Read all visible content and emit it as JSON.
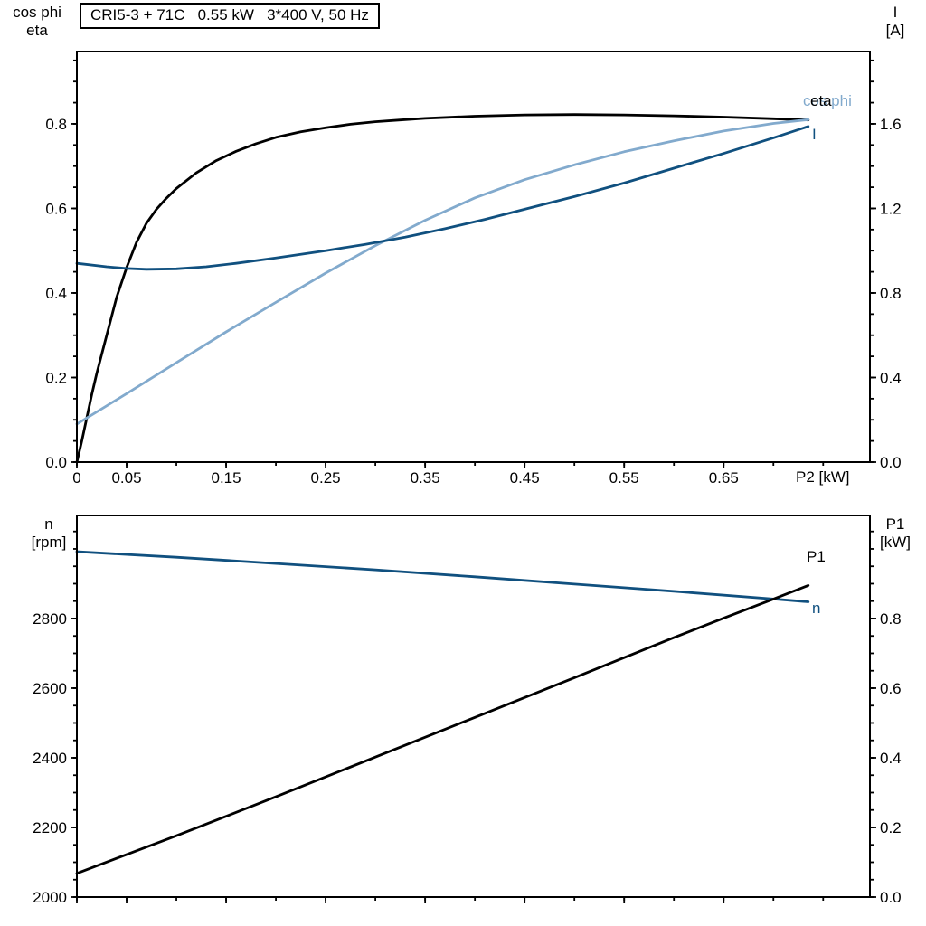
{
  "title_box": {
    "text": "CRI5-3 + 71C   0.55 kW   3*400 V, 50 Hz"
  },
  "colors": {
    "black": "#000000",
    "dark_blue": "#10507f",
    "light_blue": "#82aacd"
  },
  "axis_corner_labels": {
    "top_left_line1": "cos phi",
    "top_left_line2": "eta",
    "top_right_line1": "I",
    "top_right_line2": "[A]",
    "bottom_left_line1": "n",
    "bottom_left_line2": "[rpm]",
    "bottom_right_line1": "P1",
    "bottom_right_line2": "[kW]",
    "x_axis": "P2 [kW]"
  },
  "curve_labels": {
    "eta": "eta",
    "cos_phi": "cos phi",
    "current": "I",
    "p1": "P1",
    "n": "n"
  },
  "chart_data": [
    {
      "type": "line",
      "title": "CRI5-3 + 71C   0.55 kW   3*400 V, 50 Hz",
      "x": {
        "label": "P2 [kW]",
        "range": [
          0,
          0.797
        ],
        "minor_step": 0.05,
        "show_labels": true,
        "major_ticks": [
          0,
          0.05,
          0.15,
          0.25,
          0.35,
          0.45,
          0.55,
          0.65
        ],
        "major_labels": [
          "0",
          "0.05",
          "0.15",
          "0.25",
          "0.35",
          "0.45",
          "0.55",
          "0.65"
        ]
      },
      "y_left": {
        "label": "cos phi / eta",
        "range": [
          0,
          0.971
        ],
        "minor_step": 0.05,
        "major_ticks": [
          0,
          0.2,
          0.4,
          0.6,
          0.8
        ],
        "major_labels": [
          "0.0",
          "0.2",
          "0.4",
          "0.6",
          "0.8"
        ]
      },
      "y_right": {
        "label": "I [A]",
        "range": [
          0,
          1.942
        ],
        "minor_step": 0.1,
        "major_ticks": [
          0,
          0.4,
          0.8,
          1.2,
          1.6
        ],
        "major_labels": [
          "0.0",
          "0.4",
          "0.8",
          "1.2",
          "1.6"
        ]
      },
      "legend_position": "end-of-curve",
      "grid": false,
      "series": [
        {
          "name": "eta",
          "axis": "left",
          "color": "black",
          "points": [
            [
              0,
              0
            ],
            [
              0.005,
              0.05
            ],
            [
              0.01,
              0.105
            ],
            [
              0.015,
              0.16
            ],
            [
              0.02,
              0.21
            ],
            [
              0.03,
              0.3
            ],
            [
              0.04,
              0.39
            ],
            [
              0.05,
              0.46
            ],
            [
              0.06,
              0.52
            ],
            [
              0.07,
              0.565
            ],
            [
              0.08,
              0.598
            ],
            [
              0.09,
              0.624
            ],
            [
              0.1,
              0.647
            ],
            [
              0.12,
              0.684
            ],
            [
              0.14,
              0.713
            ],
            [
              0.16,
              0.735
            ],
            [
              0.18,
              0.753
            ],
            [
              0.2,
              0.768
            ],
            [
              0.225,
              0.781
            ],
            [
              0.25,
              0.791
            ],
            [
              0.275,
              0.799
            ],
            [
              0.3,
              0.805
            ],
            [
              0.325,
              0.809
            ],
            [
              0.35,
              0.813
            ],
            [
              0.4,
              0.818
            ],
            [
              0.45,
              0.821
            ],
            [
              0.5,
              0.822
            ],
            [
              0.55,
              0.821
            ],
            [
              0.6,
              0.819
            ],
            [
              0.65,
              0.816
            ],
            [
              0.7,
              0.812
            ],
            [
              0.735,
              0.809
            ]
          ]
        },
        {
          "name": "cos phi",
          "axis": "left",
          "color": "light_blue",
          "points": [
            [
              0,
              0.09
            ],
            [
              0.05,
              0.162
            ],
            [
              0.1,
              0.235
            ],
            [
              0.15,
              0.308
            ],
            [
              0.2,
              0.378
            ],
            [
              0.25,
              0.447
            ],
            [
              0.3,
              0.512
            ],
            [
              0.35,
              0.572
            ],
            [
              0.4,
              0.625
            ],
            [
              0.45,
              0.668
            ],
            [
              0.5,
              0.703
            ],
            [
              0.55,
              0.734
            ],
            [
              0.6,
              0.76
            ],
            [
              0.65,
              0.783
            ],
            [
              0.7,
              0.801
            ],
            [
              0.735,
              0.81
            ]
          ]
        },
        {
          "name": "I",
          "axis": "right",
          "color": "dark_blue",
          "points": [
            [
              0,
              0.94
            ],
            [
              0.03,
              0.924
            ],
            [
              0.05,
              0.916
            ],
            [
              0.07,
              0.912
            ],
            [
              0.1,
              0.914
            ],
            [
              0.13,
              0.924
            ],
            [
              0.16,
              0.94
            ],
            [
              0.2,
              0.966
            ],
            [
              0.25,
              1.0
            ],
            [
              0.29,
              1.03
            ],
            [
              0.33,
              1.064
            ],
            [
              0.37,
              1.104
            ],
            [
              0.41,
              1.148
            ],
            [
              0.45,
              1.196
            ],
            [
              0.5,
              1.256
            ],
            [
              0.55,
              1.32
            ],
            [
              0.6,
              1.39
            ],
            [
              0.65,
              1.46
            ],
            [
              0.7,
              1.534
            ],
            [
              0.735,
              1.588
            ]
          ]
        }
      ]
    },
    {
      "type": "line",
      "title": "",
      "x": {
        "label": "",
        "range": [
          0,
          0.797
        ],
        "minor_step": 0.05,
        "show_labels": false,
        "major_ticks": [
          0,
          0.05,
          0.15,
          0.25,
          0.35,
          0.45,
          0.55,
          0.65
        ],
        "major_labels": []
      },
      "y_left": {
        "label": "n [rpm]",
        "range": [
          2000,
          3096
        ],
        "minor_step": 50,
        "major_ticks": [
          2000,
          2200,
          2400,
          2600,
          2800
        ],
        "major_labels": [
          "2000",
          "2200",
          "2400",
          "2600",
          "2800"
        ]
      },
      "y_right": {
        "label": "P1 [kW]",
        "range": [
          0,
          1.096
        ],
        "minor_step": 0.05,
        "major_ticks": [
          0,
          0.2,
          0.4,
          0.6,
          0.8
        ],
        "major_labels": [
          "0.0",
          "0.2",
          "0.4",
          "0.6",
          "0.8"
        ]
      },
      "legend_position": "end-of-curve",
      "grid": false,
      "series": [
        {
          "name": "n",
          "axis": "left",
          "color": "dark_blue",
          "points": [
            [
              0,
              2992
            ],
            [
              0.1,
              2976
            ],
            [
              0.2,
              2958
            ],
            [
              0.3,
              2940
            ],
            [
              0.4,
              2920
            ],
            [
              0.5,
              2899
            ],
            [
              0.6,
              2878
            ],
            [
              0.7,
              2856
            ],
            [
              0.735,
              2848
            ]
          ]
        },
        {
          "name": "P1",
          "axis": "right",
          "color": "black",
          "points": [
            [
              0,
              0.068
            ],
            [
              0.1,
              0.176
            ],
            [
              0.2,
              0.288
            ],
            [
              0.3,
              0.402
            ],
            [
              0.4,
              0.516
            ],
            [
              0.5,
              0.63
            ],
            [
              0.6,
              0.745
            ],
            [
              0.65,
              0.801
            ],
            [
              0.7,
              0.856
            ],
            [
              0.735,
              0.895
            ]
          ]
        }
      ]
    }
  ]
}
